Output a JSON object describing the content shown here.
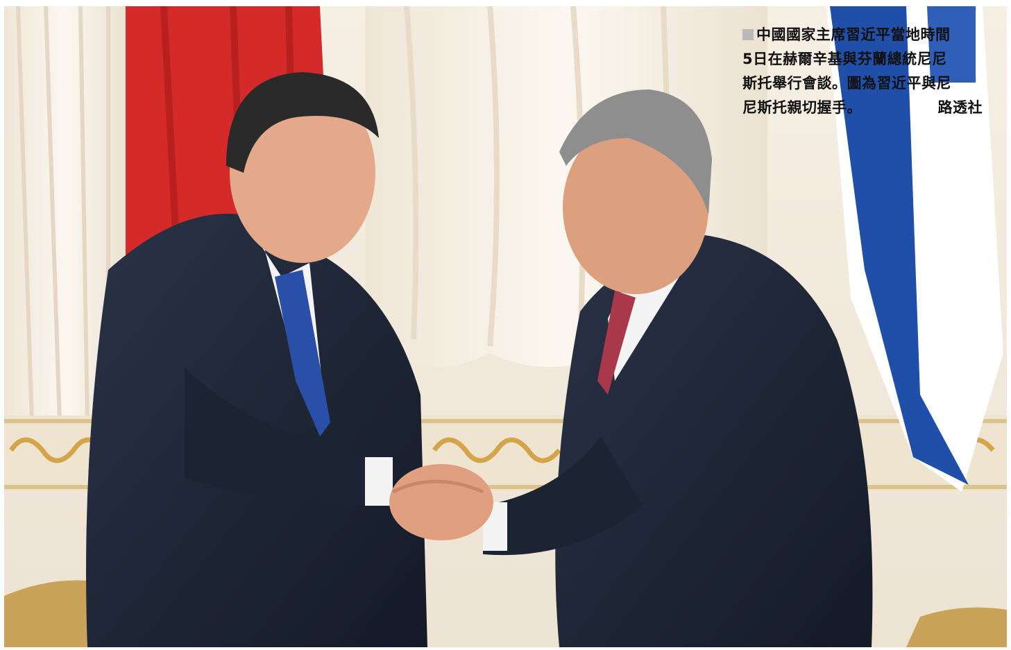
{
  "photo": {
    "colors": {
      "wall": "#f3ece0",
      "curtain": "#f7f2ea",
      "gold": "#d4a548",
      "china_flag_red": "#d42a2a",
      "finland_flag_blue": "#1f4fa8",
      "suit": "#1d2535",
      "tie_left": "#2a4fa8",
      "tie_right": "#a8384a",
      "skin": "#e3a98a"
    },
    "icons": [
      "china-flag-icon",
      "finland-flag-icon"
    ]
  },
  "caption": {
    "lines": [
      "中國國家主席習近平當地時間",
      "5日在赫爾辛基與芬蘭總統尼尼",
      "斯托舉行會談。圖為習近平與尼"
    ],
    "last_line": "尼斯托親切握手。",
    "credit": "路透社"
  }
}
